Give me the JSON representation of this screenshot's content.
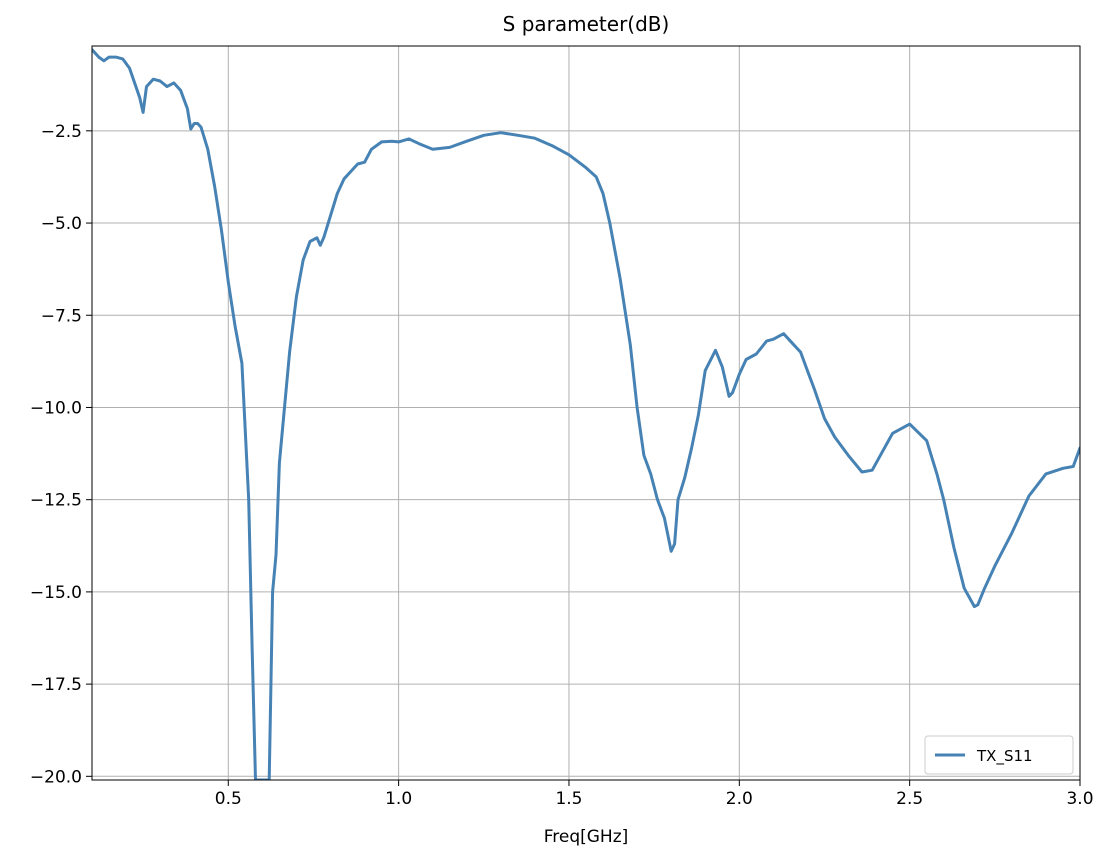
{
  "chart_data": {
    "type": "line",
    "title": "S parameter(dB)",
    "xlabel": "Freq[GHz]",
    "ylabel": "",
    "xlim": [
      0.1,
      3.0
    ],
    "ylim": [
      -20.1,
      -0.2
    ],
    "xticks": [
      0.5,
      1.0,
      1.5,
      2.0,
      2.5,
      3.0
    ],
    "xtick_labels": [
      "0.5",
      "1.0",
      "1.5",
      "2.0",
      "2.5",
      "3.0"
    ],
    "yticks": [
      -2.5,
      -5.0,
      -7.5,
      -10.0,
      -12.5,
      -15.0,
      -17.5,
      -20.0
    ],
    "ytick_labels": [
      "−2.5",
      "−5.0",
      "−7.5",
      "−10.0",
      "−12.5",
      "−15.0",
      "−17.5",
      "−20.0"
    ],
    "grid": true,
    "legend_position": "lower-right",
    "series": [
      {
        "name": "TX_S11",
        "color": "#4682b4",
        "x": [
          0.1,
          0.12,
          0.135,
          0.15,
          0.17,
          0.19,
          0.21,
          0.225,
          0.24,
          0.25,
          0.26,
          0.28,
          0.3,
          0.32,
          0.34,
          0.35,
          0.36,
          0.38,
          0.39,
          0.4,
          0.41,
          0.42,
          0.44,
          0.46,
          0.48,
          0.5,
          0.52,
          0.54,
          0.56,
          0.57,
          0.58,
          0.6,
          0.62,
          0.63,
          0.64,
          0.65,
          0.67,
          0.68,
          0.7,
          0.72,
          0.74,
          0.76,
          0.77,
          0.78,
          0.8,
          0.82,
          0.84,
          0.86,
          0.88,
          0.9,
          0.92,
          0.95,
          0.98,
          1.0,
          1.03,
          1.06,
          1.1,
          1.15,
          1.2,
          1.25,
          1.3,
          1.35,
          1.4,
          1.45,
          1.5,
          1.55,
          1.58,
          1.6,
          1.62,
          1.65,
          1.68,
          1.7,
          1.72,
          1.74,
          1.76,
          1.78,
          1.8,
          1.81,
          1.82,
          1.84,
          1.86,
          1.88,
          1.9,
          1.93,
          1.95,
          1.97,
          1.98,
          2.0,
          2.02,
          2.05,
          2.08,
          2.1,
          2.13,
          2.16,
          2.18,
          2.2,
          2.22,
          2.25,
          2.28,
          2.32,
          2.36,
          2.39,
          2.42,
          2.45,
          2.5,
          2.55,
          2.58,
          2.6,
          2.63,
          2.66,
          2.69,
          2.7,
          2.72,
          2.75,
          2.8,
          2.85,
          2.9,
          2.95,
          2.98,
          3.0
        ],
        "y": [
          -0.3,
          -0.5,
          -0.6,
          -0.5,
          -0.5,
          -0.55,
          -0.8,
          -1.2,
          -1.6,
          -2.0,
          -1.3,
          -1.1,
          -1.15,
          -1.3,
          -1.2,
          -1.3,
          -1.4,
          -1.9,
          -2.45,
          -2.3,
          -2.3,
          -2.4,
          -3.0,
          -4.0,
          -5.2,
          -6.6,
          -7.8,
          -8.8,
          -12.5,
          -16.5,
          -20.1,
          -20.1,
          -20.1,
          -15.0,
          -14.0,
          -11.5,
          -9.5,
          -8.5,
          -7.0,
          -6.0,
          -5.5,
          -5.4,
          -5.6,
          -5.4,
          -4.8,
          -4.2,
          -3.8,
          -3.6,
          -3.4,
          -3.35,
          -3.0,
          -2.8,
          -2.78,
          -2.8,
          -2.72,
          -2.85,
          -3.0,
          -2.95,
          -2.78,
          -2.62,
          -2.55,
          -2.62,
          -2.7,
          -2.9,
          -3.15,
          -3.5,
          -3.75,
          -4.2,
          -5.0,
          -6.5,
          -8.3,
          -10.0,
          -11.3,
          -11.8,
          -12.5,
          -13.0,
          -13.9,
          -13.7,
          -12.5,
          -11.9,
          -11.1,
          -10.2,
          -9.0,
          -8.45,
          -8.9,
          -9.7,
          -9.6,
          -9.1,
          -8.7,
          -8.55,
          -8.2,
          -8.15,
          -8.0,
          -8.3,
          -8.5,
          -9.0,
          -9.5,
          -10.3,
          -10.8,
          -11.3,
          -11.75,
          -11.7,
          -11.2,
          -10.7,
          -10.45,
          -10.9,
          -11.8,
          -12.5,
          -13.8,
          -14.9,
          -15.4,
          -15.35,
          -14.9,
          -14.3,
          -13.4,
          -12.4,
          -11.8,
          -11.65,
          -11.6,
          -11.1
        ]
      }
    ]
  }
}
